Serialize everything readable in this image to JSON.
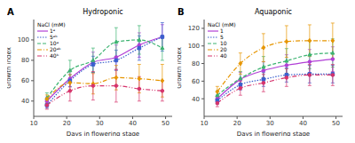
{
  "chart_data": [
    {
      "type": "line",
      "title": "Hydroponic",
      "annotations": [
        "A"
      ],
      "x_label": "Days in flowering stage",
      "y_label": "Growth index",
      "x": [
        14,
        21,
        28,
        35,
        42,
        49
      ],
      "xlim": [
        10,
        52
      ],
      "xticks": [
        10,
        20,
        30,
        40,
        50
      ],
      "ylim": [
        25,
        120
      ],
      "yticks": [
        40,
        60,
        80,
        100
      ],
      "grid": false,
      "legend": "upper left",
      "legend_title": "NaCl (mM)",
      "series": [
        {
          "name": "1ᵃ",
          "color": "#b13fd6",
          "marker": "circle",
          "line_style": "solid",
          "values": [
            40,
            62,
            78,
            83,
            95,
            103
          ],
          "errors": [
            4,
            8,
            10,
            12,
            12,
            12
          ]
        },
        {
          "name": "5ᵃᵇ",
          "color": "#3a5fcd",
          "marker": "square",
          "line_style": "dotted",
          "values": [
            36,
            60,
            76,
            80,
            92,
            103
          ],
          "errors": [
            3,
            6,
            8,
            10,
            12,
            14
          ]
        },
        {
          "name": "10ᵃ",
          "color": "#3cb371",
          "marker": "triangle",
          "line_style": "dashed",
          "values": [
            43,
            70,
            80,
            98,
            100,
            92
          ],
          "errors": [
            5,
            10,
            12,
            14,
            14,
            12
          ]
        },
        {
          "name": "20ᵃᵇ",
          "color": "#e69500",
          "marker": "diamond",
          "line_style": "dashdot",
          "values": [
            42,
            58,
            57,
            63,
            62,
            60
          ],
          "errors": [
            4,
            8,
            10,
            12,
            14,
            16
          ]
        },
        {
          "name": "40ᵇ",
          "color": "#d6336c",
          "marker": "circle",
          "line_style": "dashdotdot",
          "values": [
            36,
            50,
            55,
            55,
            52,
            50
          ],
          "errors": [
            4,
            10,
            14,
            16,
            12,
            10
          ]
        }
      ]
    },
    {
      "type": "line",
      "title": "Aquaponic",
      "annotations": [
        "B"
      ],
      "x_label": "Days in flowering stage",
      "y_label": "Growth index",
      "x": [
        14,
        21,
        28,
        35,
        42,
        49
      ],
      "xlim": [
        10,
        52
      ],
      "xticks": [
        10,
        20,
        30,
        40,
        50
      ],
      "ylim": [
        20,
        130
      ],
      "yticks": [
        40,
        60,
        80,
        100,
        120
      ],
      "grid": false,
      "legend": "upper left",
      "legend_title": "NaCl (mM)",
      "series": [
        {
          "name": "1",
          "color": "#b13fd6",
          "marker": "circle",
          "line_style": "solid",
          "values": [
            40,
            62,
            72,
            78,
            82,
            85
          ],
          "errors": [
            4,
            8,
            10,
            12,
            14,
            14
          ]
        },
        {
          "name": "5",
          "color": "#3a5fcd",
          "marker": "square",
          "line_style": "dotted",
          "values": [
            38,
            56,
            62,
            67,
            68,
            68
          ],
          "errors": [
            4,
            6,
            8,
            8,
            10,
            10
          ]
        },
        {
          "name": "10",
          "color": "#3cb371",
          "marker": "triangle",
          "line_style": "dashed",
          "values": [
            44,
            63,
            76,
            83,
            90,
            92
          ],
          "errors": [
            5,
            8,
            12,
            14,
            16,
            16
          ]
        },
        {
          "name": "20",
          "color": "#e69500",
          "marker": "diamond",
          "line_style": "dashdot",
          "values": [
            48,
            80,
            98,
            105,
            106,
            106
          ],
          "errors": [
            6,
            12,
            16,
            18,
            18,
            20
          ]
        },
        {
          "name": "40",
          "color": "#d6336c",
          "marker": "circle",
          "line_style": "dashdotdot",
          "values": [
            35,
            52,
            58,
            64,
            67,
            67
          ],
          "errors": [
            4,
            8,
            10,
            10,
            12,
            12
          ]
        }
      ]
    }
  ]
}
